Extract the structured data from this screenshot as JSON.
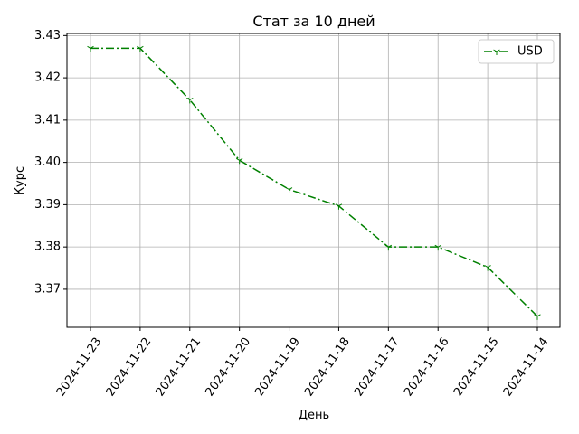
{
  "chart_data": {
    "type": "line",
    "title": "Стат за 10 дней",
    "xlabel": "День",
    "ylabel": "Курс",
    "categories": [
      "2024-11-23",
      "2024-11-22",
      "2024-11-21",
      "2024-11-20",
      "2024-11-19",
      "2024-11-18",
      "2024-11-17",
      "2024-11-16",
      "2024-11-15",
      "2024-11-14"
    ],
    "series": [
      {
        "name": "USD",
        "values": [
          3.427,
          3.427,
          3.4148,
          3.4005,
          3.3936,
          3.3897,
          3.38,
          3.38,
          3.3752,
          3.3636
        ],
        "color": "#008000",
        "line_style": "dash-dot",
        "marker": "tri-down"
      }
    ],
    "ylim": [
      3.361,
      3.4305
    ],
    "yticks": [
      3.37,
      3.38,
      3.39,
      3.4,
      3.41,
      3.42,
      3.43
    ],
    "ytick_labels": [
      "3.37",
      "3.38",
      "3.39",
      "3.40",
      "3.41",
      "3.42",
      "3.43"
    ],
    "grid": true,
    "legend_position": "top-right"
  }
}
